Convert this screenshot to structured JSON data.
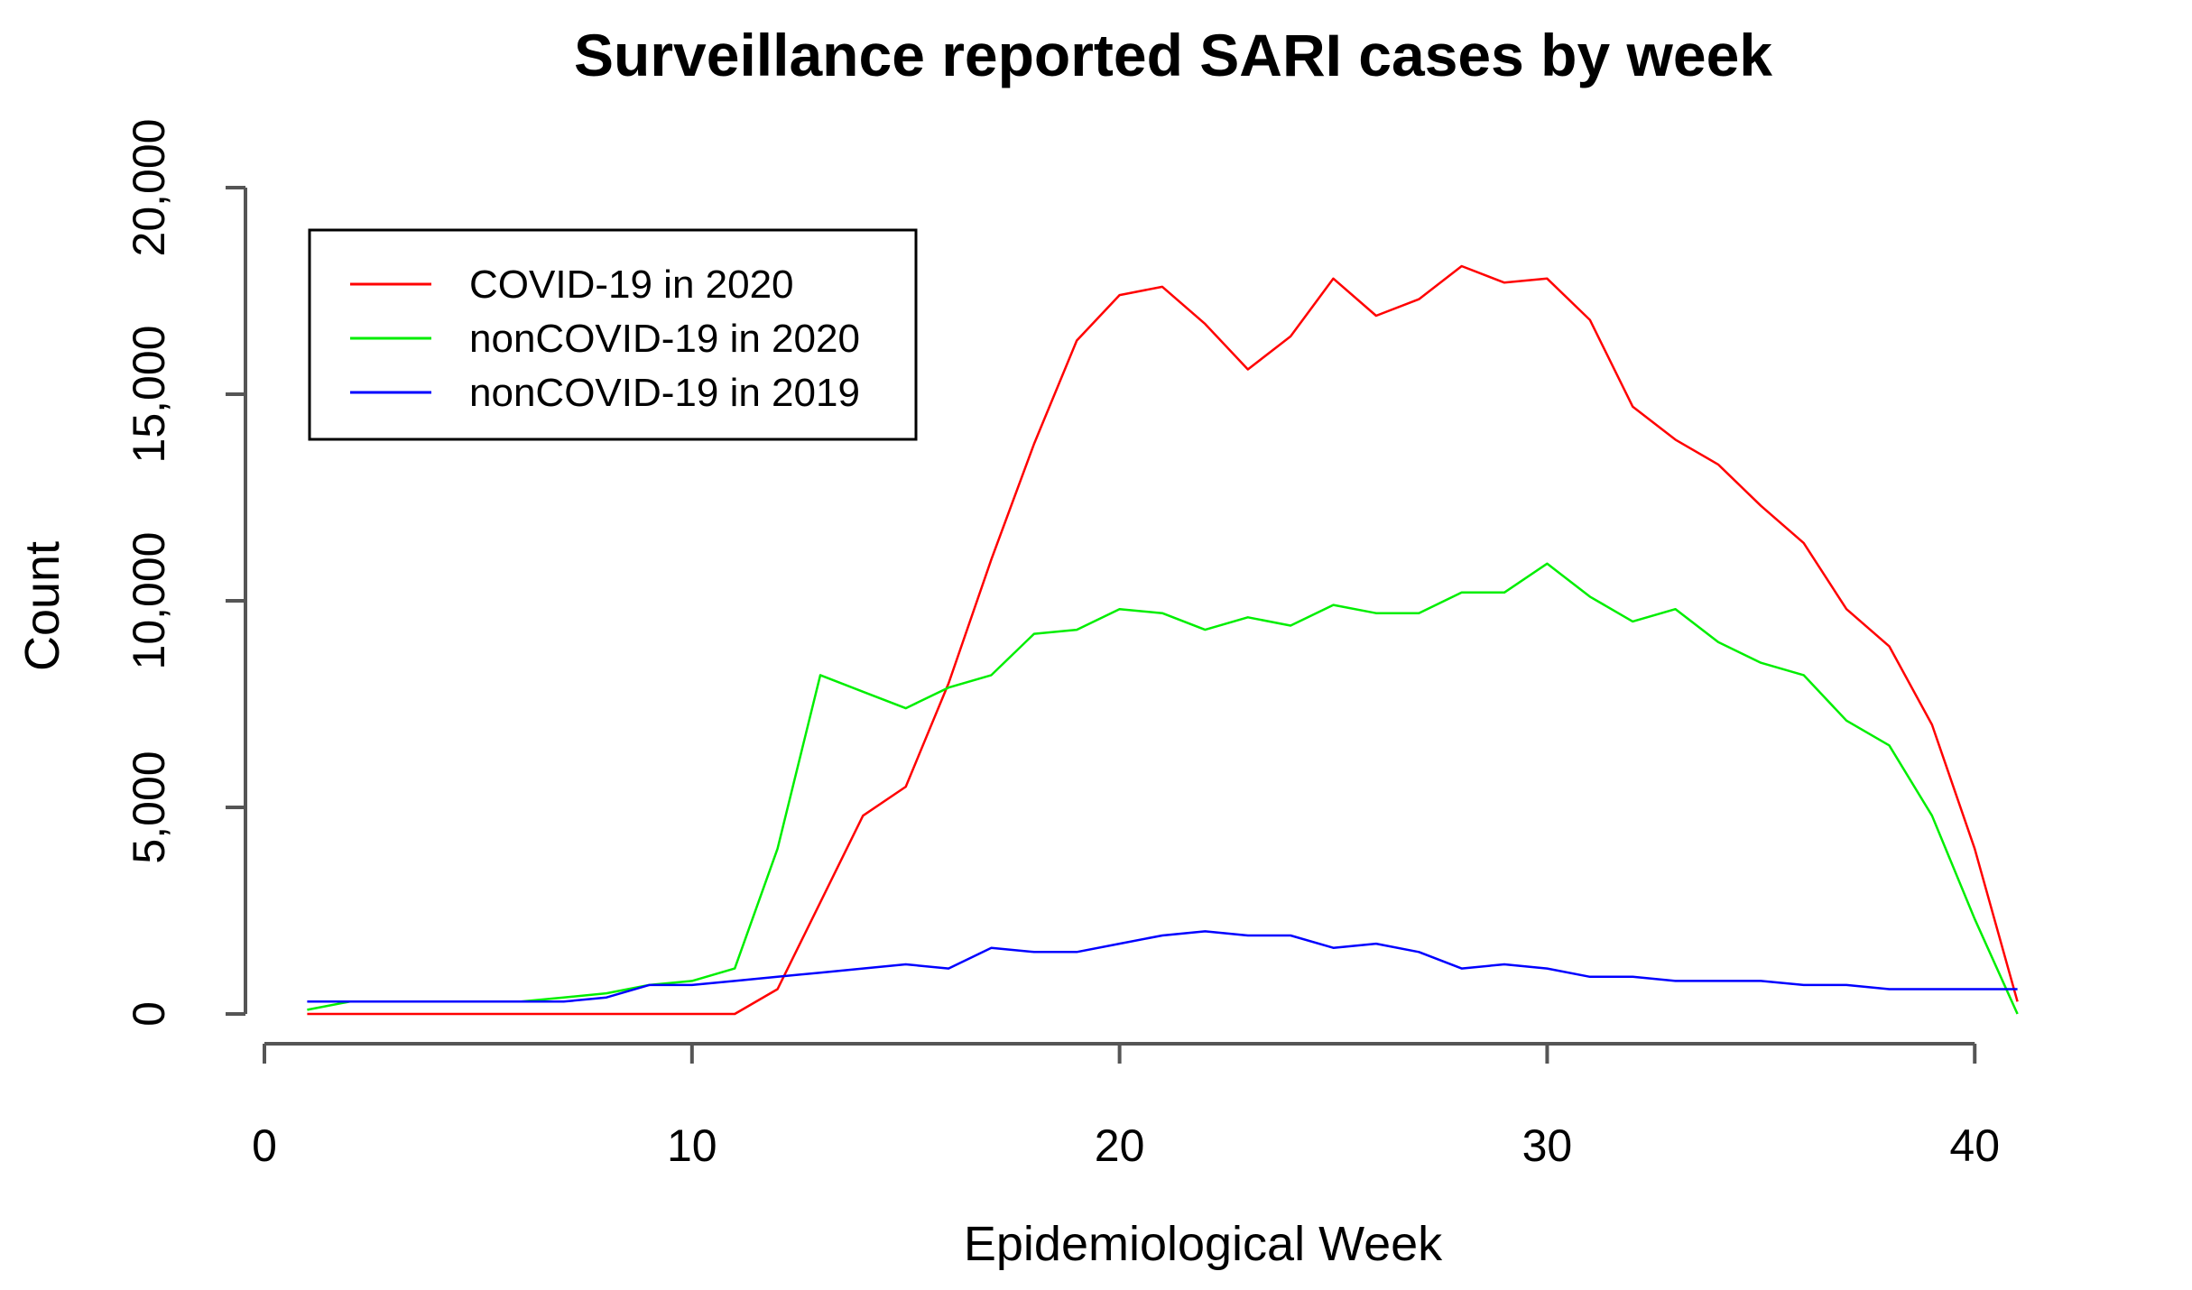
{
  "chart_data": {
    "type": "line",
    "title": "Surveillance reported SARI cases by week",
    "xlabel": "Epidemiological Week",
    "ylabel": "Count",
    "xlim": [
      0,
      42
    ],
    "ylim": [
      0,
      20000
    ],
    "x_ticks": [
      0,
      10,
      20,
      30,
      40
    ],
    "x_tick_labels": [
      "0",
      "10",
      "20",
      "30",
      "40"
    ],
    "y_ticks": [
      0,
      5000,
      10000,
      15000,
      20000
    ],
    "y_tick_labels": [
      "0",
      "5,000",
      "10,000",
      "15,000",
      "20,000"
    ],
    "grid": false,
    "legend_position": "top-left",
    "x": [
      1,
      2,
      3,
      4,
      5,
      6,
      7,
      8,
      9,
      10,
      11,
      12,
      13,
      14,
      15,
      16,
      17,
      18,
      19,
      20,
      21,
      22,
      23,
      24,
      25,
      26,
      27,
      28,
      29,
      30,
      31,
      32,
      33,
      34,
      35,
      36,
      37,
      38,
      39,
      40,
      41
    ],
    "series": [
      {
        "name": "COVID-19 in 2020",
        "color": "#ff0000",
        "values": [
          0,
          0,
          0,
          0,
          0,
          0,
          0,
          0,
          0,
          0,
          0,
          600,
          2700,
          4800,
          5500,
          8000,
          11000,
          13800,
          16300,
          17400,
          17600,
          16700,
          15600,
          16400,
          17800,
          16900,
          17300,
          18100,
          17700,
          17800,
          16800,
          14700,
          13900,
          13300,
          12300,
          11400,
          9800,
          8900,
          7000,
          4000,
          300
        ]
      },
      {
        "name": "nonCOVID-19 in 2020",
        "color": "#00ee00",
        "values": [
          100,
          300,
          300,
          300,
          300,
          300,
          400,
          500,
          700,
          800,
          1100,
          4000,
          8200,
          7800,
          7400,
          7900,
          8200,
          9200,
          9300,
          9800,
          9700,
          9300,
          9600,
          9400,
          9900,
          9700,
          9700,
          10200,
          10200,
          10900,
          10100,
          9500,
          9800,
          9000,
          8500,
          8200,
          7100,
          6500,
          4800,
          2300,
          0
        ]
      },
      {
        "name": "nonCOVID-19 in 2019",
        "color": "#0000ff",
        "values": [
          300,
          300,
          300,
          300,
          300,
          300,
          300,
          400,
          700,
          700,
          800,
          900,
          1000,
          1100,
          1200,
          1100,
          1600,
          1500,
          1500,
          1700,
          1900,
          2000,
          1900,
          1900,
          1600,
          1700,
          1500,
          1100,
          1200,
          1100,
          900,
          900,
          800,
          800,
          800,
          700,
          700,
          600,
          600,
          600,
          600
        ]
      }
    ]
  }
}
